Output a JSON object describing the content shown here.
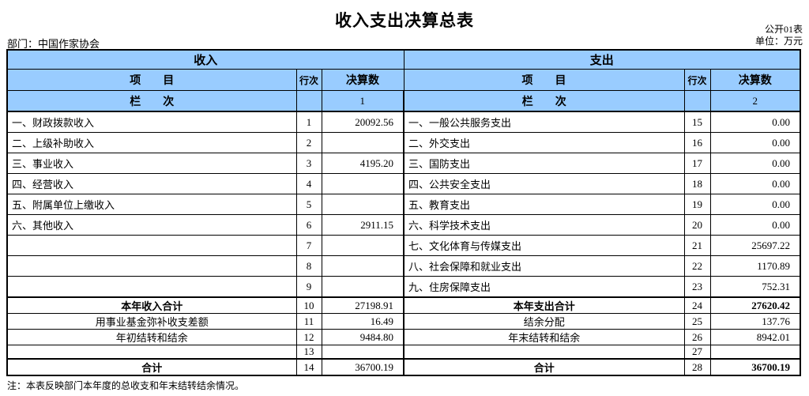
{
  "page": {
    "title": "收入支出决算总表",
    "table_code": "公开01表",
    "unit_label": "单位：万元",
    "department_label": "部门：中国作家协会",
    "footnote": "注：本表反映部门本年度的总收支和年末结转结余情况。"
  },
  "style": {
    "header_bg": "#99CCFF",
    "border_color": "#000000"
  },
  "income": {
    "section_title": "收入",
    "header": {
      "item": "项　　目",
      "line_no": "行次",
      "amount": "决算数"
    },
    "column_row": {
      "label": "栏　　次",
      "number": "1"
    },
    "rows": [
      {
        "label": "一、财政拨款收入",
        "line": "1",
        "amount": "20092.56",
        "center": false,
        "bold_label": false,
        "bold_amount": false,
        "thick_top": false
      },
      {
        "label": "二、上级补助收入",
        "line": "2",
        "amount": "",
        "center": false,
        "bold_label": false,
        "bold_amount": false,
        "thick_top": false
      },
      {
        "label": "三、事业收入",
        "line": "3",
        "amount": "4195.20",
        "center": false,
        "bold_label": false,
        "bold_amount": false,
        "thick_top": false
      },
      {
        "label": "四、经营收入",
        "line": "4",
        "amount": "",
        "center": false,
        "bold_label": false,
        "bold_amount": false,
        "thick_top": false
      },
      {
        "label": "五、附属单位上缴收入",
        "line": "5",
        "amount": "",
        "center": false,
        "bold_label": false,
        "bold_amount": false,
        "thick_top": false
      },
      {
        "label": "六、其他收入",
        "line": "6",
        "amount": "2911.15",
        "center": false,
        "bold_label": false,
        "bold_amount": false,
        "thick_top": false
      },
      {
        "label": "",
        "line": "7",
        "amount": "",
        "center": false,
        "bold_label": false,
        "bold_amount": false,
        "thick_top": false
      },
      {
        "label": "",
        "line": "8",
        "amount": "",
        "center": false,
        "bold_label": false,
        "bold_amount": false,
        "thick_top": false
      },
      {
        "label": "",
        "line": "9",
        "amount": "",
        "center": false,
        "bold_label": false,
        "bold_amount": false,
        "thick_top": false
      },
      {
        "label": "本年收入合计",
        "line": "10",
        "amount": "27198.91",
        "center": true,
        "bold_label": true,
        "bold_amount": false,
        "thick_top": true
      },
      {
        "label": "用事业基金弥补收支差额",
        "line": "11",
        "amount": "16.49",
        "center": true,
        "bold_label": false,
        "bold_amount": false,
        "thick_top": false
      },
      {
        "label": "年初结转和结余",
        "line": "12",
        "amount": "9484.80",
        "center": true,
        "bold_label": false,
        "bold_amount": false,
        "thick_top": false
      },
      {
        "label": "",
        "line": "13",
        "amount": "",
        "center": false,
        "bold_label": false,
        "bold_amount": false,
        "thick_top": false
      },
      {
        "label": "合计",
        "line": "14",
        "amount": "36700.19",
        "center": true,
        "bold_label": true,
        "bold_amount": false,
        "thick_top": true
      }
    ]
  },
  "expense": {
    "section_title": "支出",
    "header": {
      "item": "项　　目",
      "line_no": "行次",
      "amount": "决算数"
    },
    "column_row": {
      "label": "栏　　次",
      "number": "2"
    },
    "rows": [
      {
        "label": "一、一般公共服务支出",
        "line": "15",
        "amount": "0.00",
        "center": false,
        "bold_label": false,
        "bold_amount": false,
        "thick_top": false
      },
      {
        "label": "二、外交支出",
        "line": "16",
        "amount": "0.00",
        "center": false,
        "bold_label": false,
        "bold_amount": false,
        "thick_top": false
      },
      {
        "label": "三、国防支出",
        "line": "17",
        "amount": "0.00",
        "center": false,
        "bold_label": false,
        "bold_amount": false,
        "thick_top": false
      },
      {
        "label": "四、公共安全支出",
        "line": "18",
        "amount": "0.00",
        "center": false,
        "bold_label": false,
        "bold_amount": false,
        "thick_top": false
      },
      {
        "label": "五、教育支出",
        "line": "19",
        "amount": "0.00",
        "center": false,
        "bold_label": false,
        "bold_amount": false,
        "thick_top": false
      },
      {
        "label": "六、科学技术支出",
        "line": "20",
        "amount": "0.00",
        "center": false,
        "bold_label": false,
        "bold_amount": false,
        "thick_top": false
      },
      {
        "label": "七、文化体育与传媒支出",
        "line": "21",
        "amount": "25697.22",
        "center": false,
        "bold_label": false,
        "bold_amount": false,
        "thick_top": false
      },
      {
        "label": "八、社会保障和就业支出",
        "line": "22",
        "amount": "1170.89",
        "center": false,
        "bold_label": false,
        "bold_amount": false,
        "thick_top": false
      },
      {
        "label": "九、住房保障支出",
        "line": "23",
        "amount": "752.31",
        "center": false,
        "bold_label": false,
        "bold_amount": false,
        "thick_top": false
      },
      {
        "label": "本年支出合计",
        "line": "24",
        "amount": "27620.42",
        "center": true,
        "bold_label": true,
        "bold_amount": true,
        "thick_top": true
      },
      {
        "label": "结余分配",
        "line": "25",
        "amount": "137.76",
        "center": true,
        "bold_label": false,
        "bold_amount": false,
        "thick_top": false
      },
      {
        "label": "年末结转和结余",
        "line": "26",
        "amount": "8942.01",
        "center": true,
        "bold_label": false,
        "bold_amount": false,
        "thick_top": false
      },
      {
        "label": "",
        "line": "27",
        "amount": "",
        "center": false,
        "bold_label": false,
        "bold_amount": false,
        "thick_top": false
      },
      {
        "label": "合计",
        "line": "28",
        "amount": "36700.19",
        "center": true,
        "bold_label": true,
        "bold_amount": true,
        "thick_top": true
      }
    ]
  }
}
